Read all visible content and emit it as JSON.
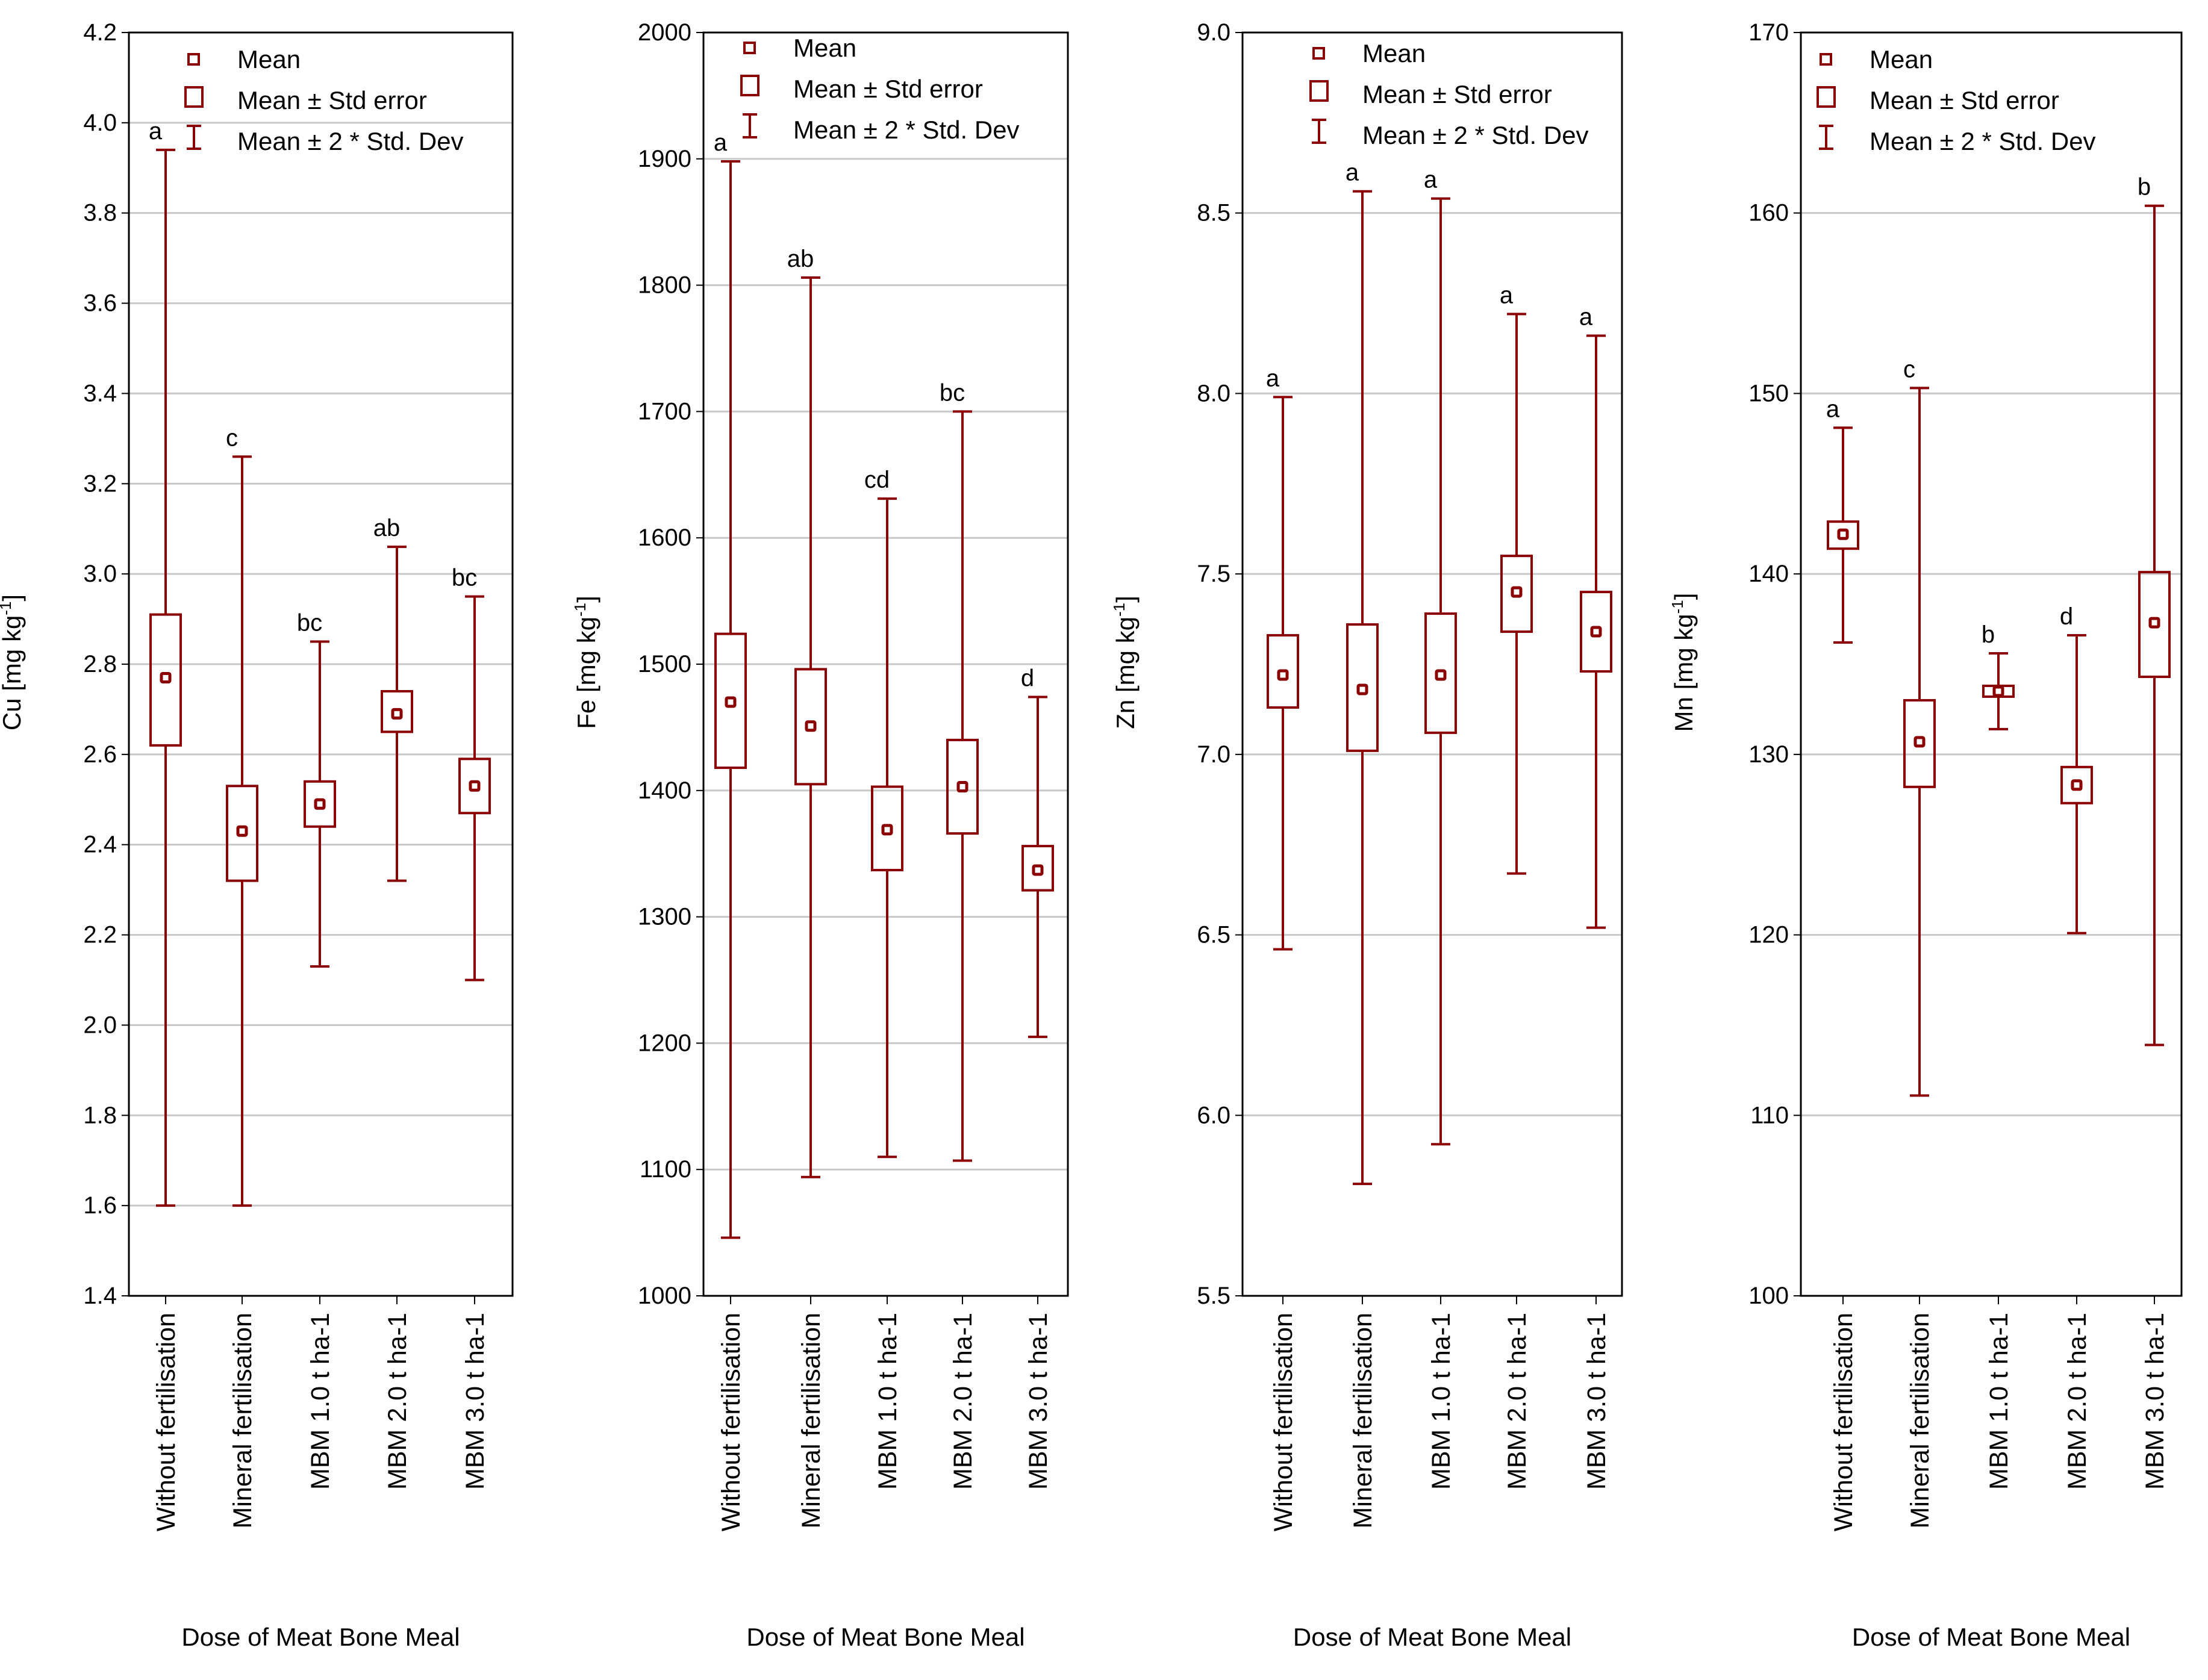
{
  "shared": {
    "xlabel": "Dose of Meat Bone Meal",
    "categories": [
      "Without fertilisation",
      "Mineral fertilisation",
      "MBM 1.0 t ha-1",
      "MBM 2.0 t ha-1",
      "MBM 3.0 t ha-1"
    ],
    "legend": {
      "mean": "Mean",
      "se": "Mean ± Std error",
      "sd": "Mean ± 2 * Std. Dev"
    },
    "colors": {
      "series": "#8b0000",
      "grid": "#c8c8c8",
      "axis": "#000000"
    }
  },
  "chart_data": [
    {
      "type": "box",
      "ylabel": "Cu [mg kg-1]",
      "ylabel_main": "Cu [mg kg",
      "ylabel_sup": "-1",
      "ylabel_end": "]",
      "ylim": [
        1.4,
        4.2
      ],
      "yticks": [
        "1.4",
        "1.6",
        "1.8",
        "2.0",
        "2.2",
        "2.4",
        "2.6",
        "2.8",
        "3.0",
        "3.2",
        "3.4",
        "3.6",
        "3.8",
        "4.0",
        "4.2"
      ],
      "means": [
        2.77,
        2.43,
        2.49,
        2.69,
        2.53
      ],
      "se_low": [
        2.62,
        2.32,
        2.44,
        2.65,
        2.47
      ],
      "se_high": [
        2.91,
        2.53,
        2.54,
        2.74,
        2.59
      ],
      "sd_low": [
        1.6,
        1.6,
        2.13,
        2.32,
        2.1
      ],
      "sd_high": [
        3.94,
        3.26,
        2.85,
        3.06,
        2.95
      ],
      "letters": [
        "a",
        "c",
        "bc",
        "ab",
        "bc"
      ]
    },
    {
      "type": "box",
      "ylabel": "Fe [mg kg-1]",
      "ylabel_main": "Fe [mg kg",
      "ylabel_sup": "-1",
      "ylabel_end": "]",
      "ylim": [
        1000,
        2000
      ],
      "yticks": [
        "1000",
        "1100",
        "1200",
        "1300",
        "1400",
        "1500",
        "1600",
        "1700",
        "1800",
        "1900",
        "2000"
      ],
      "means": [
        1470,
        1451,
        1369,
        1403,
        1337
      ],
      "se_low": [
        1418,
        1405,
        1337,
        1366,
        1321
      ],
      "se_high": [
        1524,
        1496,
        1403,
        1440,
        1356
      ],
      "sd_low": [
        1046,
        1094,
        1110,
        1107,
        1205
      ],
      "sd_high": [
        1898,
        1806,
        1631,
        1700,
        1474
      ],
      "letters": [
        "a",
        "ab",
        "cd",
        "bc",
        "d"
      ]
    },
    {
      "type": "box",
      "ylabel": "Zn [mg kg-1]",
      "ylabel_main": "Zn [mg kg",
      "ylabel_sup": "-1",
      "ylabel_end": "]",
      "ylim": [
        5.5,
        9.0
      ],
      "yticks": [
        "5.5",
        "6.0",
        "6.5",
        "7.0",
        "7.5",
        "8.0",
        "8.5",
        "9.0"
      ],
      "means": [
        7.22,
        7.18,
        7.22,
        7.45,
        7.34
      ],
      "se_low": [
        7.13,
        7.01,
        7.06,
        7.34,
        7.23
      ],
      "se_high": [
        7.33,
        7.36,
        7.39,
        7.55,
        7.45
      ],
      "sd_low": [
        6.46,
        5.81,
        5.92,
        6.67,
        6.52
      ],
      "sd_high": [
        7.99,
        8.56,
        8.54,
        8.22,
        8.16
      ],
      "letters": [
        "a",
        "a",
        "a",
        "a",
        "a"
      ]
    },
    {
      "type": "box",
      "ylabel": "Mn [mg kg-1]",
      "ylabel_main": "Mn [mg kg",
      "ylabel_sup": "-1",
      "ylabel_end": "]",
      "ylim": [
        100,
        170
      ],
      "yticks": [
        "100",
        "110",
        "120",
        "130",
        "140",
        "150",
        "160",
        "170"
      ],
      "means": [
        142.2,
        130.7,
        133.5,
        128.3,
        137.3
      ],
      "se_low": [
        141.4,
        128.2,
        133.2,
        127.3,
        134.3
      ],
      "se_high": [
        142.9,
        133.0,
        133.8,
        129.3,
        140.1
      ],
      "sd_low": [
        136.2,
        111.1,
        131.4,
        120.1,
        113.9
      ],
      "sd_high": [
        148.1,
        150.3,
        135.6,
        136.6,
        160.4
      ],
      "letters": [
        "a",
        "c",
        "b",
        "d",
        "b"
      ]
    }
  ]
}
